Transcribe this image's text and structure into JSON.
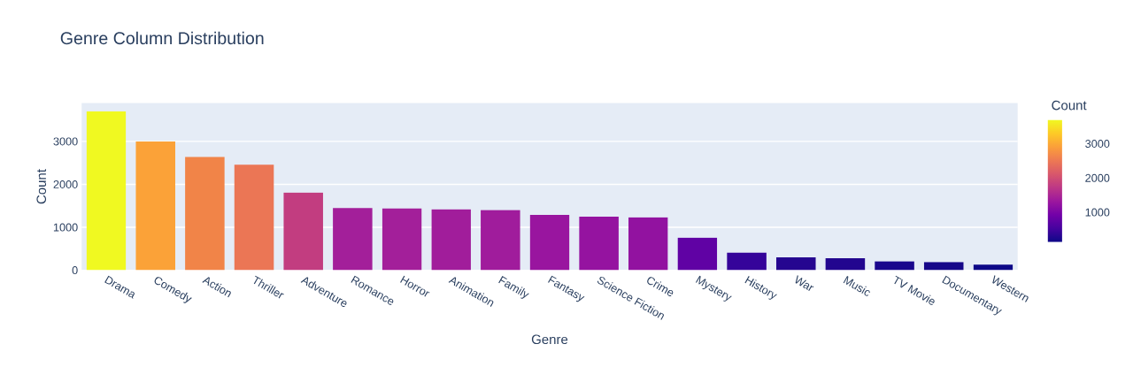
{
  "chart_data": {
    "type": "bar",
    "title": "Genre Column Distribution",
    "xlabel": "Genre",
    "ylabel": "Count",
    "clabel": "Count",
    "categories": [
      "Drama",
      "Comedy",
      "Action",
      "Thriller",
      "Adventure",
      "Romance",
      "Horror",
      "Animation",
      "Family",
      "Fantasy",
      "Science Fiction",
      "Crime",
      "Mystery",
      "History",
      "War",
      "Music",
      "TV Movie",
      "Documentary",
      "Western"
    ],
    "values": [
      3700,
      3000,
      2640,
      2460,
      1810,
      1450,
      1440,
      1420,
      1400,
      1290,
      1250,
      1230,
      760,
      410,
      300,
      280,
      210,
      190,
      130
    ],
    "colors": [
      "#f0f921",
      "#fba238",
      "#f18448",
      "#eb7655",
      "#c23d80",
      "#a31f9a",
      "#a31f9a",
      "#a11d9b",
      "#a01c9c",
      "#99159f",
      "#9513a0",
      "#9212a0",
      "#6002a4",
      "#35049a",
      "#250690",
      "#22068f",
      "#1a078d",
      "#160789",
      "#0d0887"
    ],
    "ylim": [
      0,
      3895
    ],
    "yticks": [
      0,
      1000,
      2000,
      3000
    ],
    "clim": [
      130,
      3700
    ],
    "cticks": [
      1000,
      2000,
      3000
    ],
    "grid": "y"
  }
}
